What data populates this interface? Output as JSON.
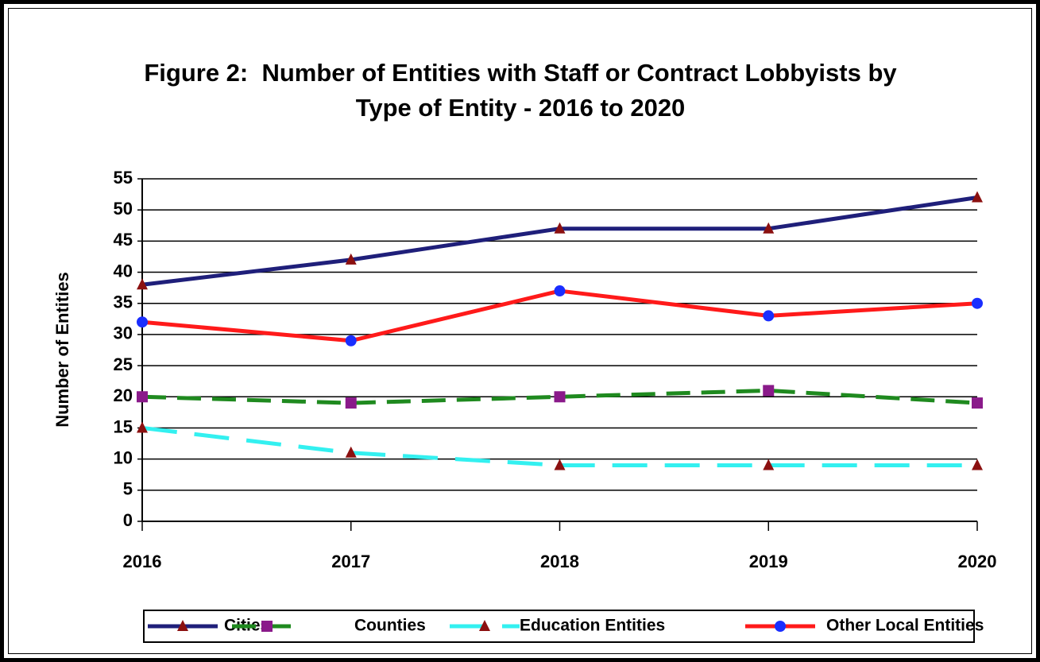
{
  "chart_data": {
    "type": "line",
    "title": "Figure 2:  Number of Entities with Staff or Contract Lobbyists by Type of Entity - 2016 to 2020",
    "y_label": "Number of Entities",
    "categories": [
      "2016",
      "2017",
      "2018",
      "2019",
      "2020"
    ],
    "series": [
      {
        "name": "Cities",
        "color": "#1f1f7a",
        "dash": "solid",
        "marker": "triangle",
        "marker_color": "#8b1010",
        "values": [
          38,
          42,
          47,
          47,
          52
        ]
      },
      {
        "name": "Counties",
        "color": "#1f8a1f",
        "dash": "dashed",
        "marker": "square",
        "marker_color": "#8a1a8a",
        "values": [
          20,
          19,
          20,
          21,
          19
        ]
      },
      {
        "name": "Education Entities",
        "color": "#33f0f0",
        "dash": "long-dashed",
        "marker": "triangle",
        "marker_color": "#8b1010",
        "values": [
          15,
          11,
          9,
          9,
          9
        ]
      },
      {
        "name": "Other Local Entities",
        "color": "#ff1a1a",
        "dash": "solid",
        "marker": "circle",
        "marker_color": "#1a2eff",
        "values": [
          32,
          29,
          37,
          33,
          35
        ]
      }
    ],
    "ylim": [
      0,
      55
    ],
    "yticks": [
      0,
      5,
      10,
      15,
      20,
      25,
      30,
      35,
      40,
      45,
      50,
      55
    ],
    "grid": true,
    "legend": "bottom"
  }
}
